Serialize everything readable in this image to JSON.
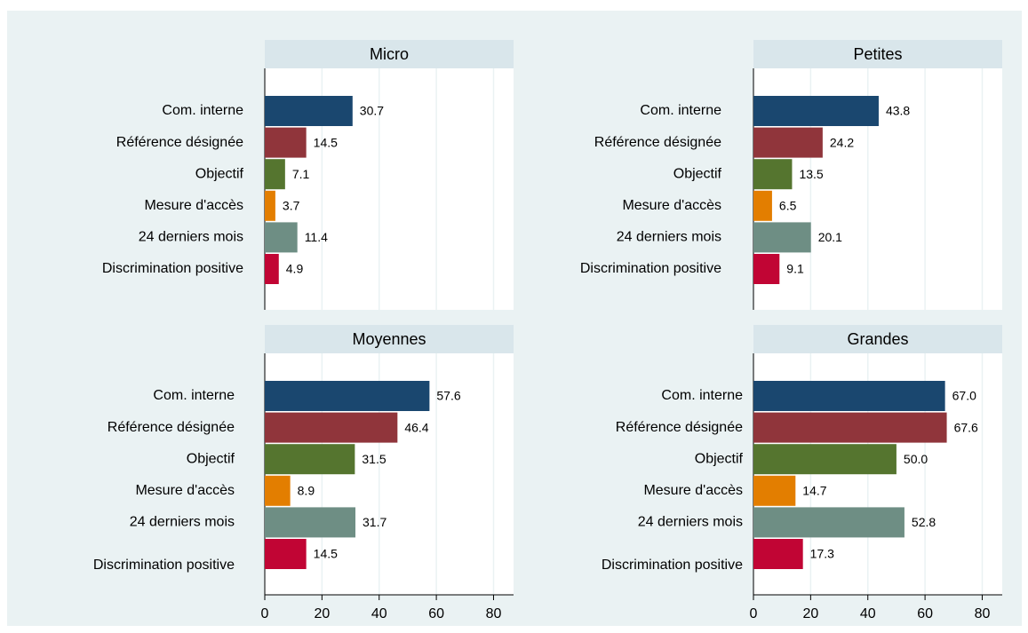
{
  "chart_data": [
    {
      "type": "bar",
      "title": "Micro",
      "categories": [
        "Com. interne",
        "Référence désignée",
        "Objectif",
        "Mesure d'accès",
        "24 derniers mois",
        "Discrimination positive"
      ],
      "values": [
        30.7,
        14.5,
        7.1,
        3.7,
        11.4,
        4.9
      ],
      "value_labels": [
        "30.7",
        "14.5",
        "7.1",
        "3.7",
        "11.4",
        "4.9"
      ],
      "colors": [
        "#1a476f",
        "#90353b",
        "#55752f",
        "#e37e00",
        "#6e8e84",
        "#c10534"
      ],
      "xlim": [
        0,
        87
      ],
      "xticks": [
        0,
        20,
        40,
        60,
        80
      ],
      "grid": true
    },
    {
      "type": "bar",
      "title": "Petites",
      "categories": [
        "Com. interne",
        "Référence désignée",
        "Objectif",
        "Mesure d'accès",
        "24 derniers mois",
        "Discrimination positive"
      ],
      "values": [
        43.8,
        24.2,
        13.5,
        6.5,
        20.1,
        9.1
      ],
      "value_labels": [
        "43.8",
        "24.2",
        "13.5",
        "6.5",
        "20.1",
        "9.1"
      ],
      "colors": [
        "#1a476f",
        "#90353b",
        "#55752f",
        "#e37e00",
        "#6e8e84",
        "#c10534"
      ],
      "xlim": [
        0,
        87
      ],
      "xticks": [
        0,
        20,
        40,
        60,
        80
      ],
      "grid": true
    },
    {
      "type": "bar",
      "title": "Moyennes",
      "categories": [
        "Com. interne",
        "Référence désignée",
        "Objectif",
        "Mesure d'accès",
        "24 derniers mois",
        "Discrimination positive"
      ],
      "values": [
        57.6,
        46.4,
        31.5,
        8.9,
        31.7,
        14.5
      ],
      "value_labels": [
        "57.6",
        "46.4",
        "31.5",
        "8.9",
        "31.7",
        "14.5"
      ],
      "colors": [
        "#1a476f",
        "#90353b",
        "#55752f",
        "#e37e00",
        "#6e8e84",
        "#c10534"
      ],
      "xlim": [
        0,
        87
      ],
      "xticks": [
        0,
        20,
        40,
        60,
        80
      ],
      "grid": true
    },
    {
      "type": "bar",
      "title": "Grandes",
      "categories": [
        "Com. interne",
        "Référence désignée",
        "Objectif",
        "Mesure d'accès",
        "24 derniers mois",
        "Discrimination positive"
      ],
      "values": [
        67.0,
        67.6,
        50.0,
        14.7,
        52.8,
        17.3
      ],
      "value_labels": [
        "67.0",
        "67.6",
        "50.0",
        "14.7",
        "52.8",
        "17.3"
      ],
      "colors": [
        "#1a476f",
        "#90353b",
        "#55752f",
        "#e37e00",
        "#6e8e84",
        "#c10534"
      ],
      "xlim": [
        0,
        87
      ],
      "xticks": [
        0,
        20,
        40,
        60,
        80
      ],
      "grid": true
    }
  ]
}
